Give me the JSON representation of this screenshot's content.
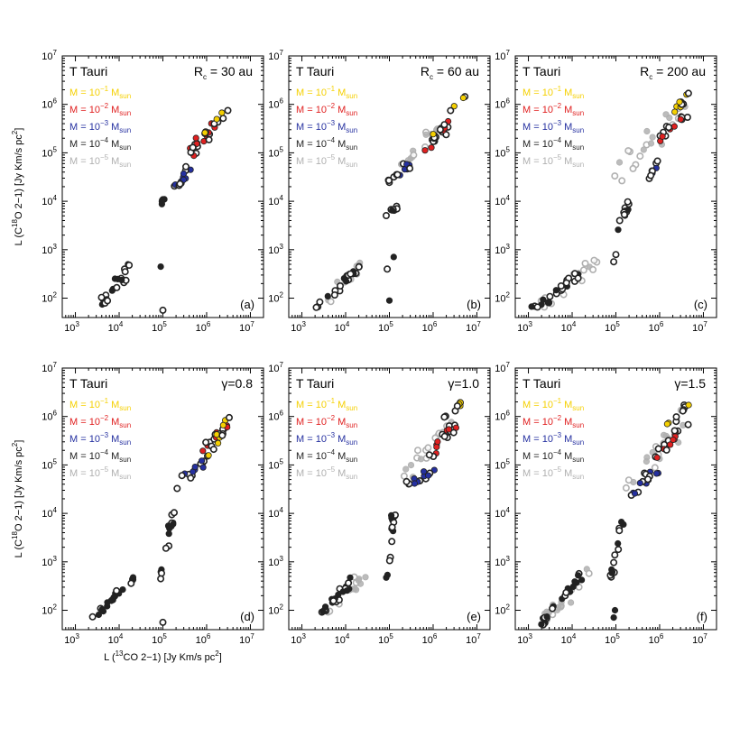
{
  "figure": {
    "xlabel": "L (13CO 2−1) [Jy Km/s pc2]",
    "xlabel_parts": {
      "pre": "L (",
      "iso": "13",
      "mid": "CO 2−1) [Jy Km/s pc",
      "sup2": "2",
      "post": "]"
    },
    "ylabel": "L (C18O 2−1) [Jy Km/s pc2]",
    "ylabel_parts": {
      "pre": "L (C",
      "iso": "18",
      "mid": "O 2−1) [Jy Km/s pc",
      "sup2": "2",
      "post": "]"
    },
    "source_label": "T Tauri"
  },
  "colors": {
    "m1": "#f5d000",
    "m2": "#e02020",
    "m3": "#2530a0",
    "m4": "#222222",
    "m5": "#b0b0b0"
  },
  "legend": [
    {
      "key": "m1",
      "prefix": "M = 10",
      "exp": "−1",
      "unit": "M",
      "unit_sub": "sun"
    },
    {
      "key": "m2",
      "prefix": "M = 10",
      "exp": "−2",
      "unit": "M",
      "unit_sub": "sun"
    },
    {
      "key": "m3",
      "prefix": "M = 10",
      "exp": "−3",
      "unit": "M",
      "unit_sub": "sun"
    },
    {
      "key": "m4",
      "prefix": "M = 10",
      "exp": "−4",
      "unit": "M",
      "unit_sub": "sun"
    },
    {
      "key": "m5",
      "prefix": "M = 10",
      "exp": "−5",
      "unit": "M",
      "unit_sub": "sun"
    }
  ],
  "chart_data": [
    {
      "type": "scatter",
      "panel": "a",
      "param_text": "R",
      "param_sub": "c",
      "param_value": " = 30 au",
      "xscale": "log",
      "yscale": "log",
      "xlim": [
        500,
        20000000
      ],
      "ylim": [
        40,
        10000000
      ],
      "xticks": [
        "3",
        "4",
        "5",
        "6",
        "7"
      ],
      "yticks": [
        "2",
        "3",
        "4",
        "5",
        "6",
        "7"
      ]
    },
    {
      "type": "scatter",
      "panel": "b",
      "param_text": "R",
      "param_sub": "c",
      "param_value": " = 60 au",
      "xscale": "log",
      "yscale": "log",
      "xlim": [
        500,
        20000000
      ],
      "ylim": [
        40,
        10000000
      ],
      "xticks": [
        "3",
        "4",
        "5",
        "6",
        "7"
      ],
      "yticks": [
        "2",
        "3",
        "4",
        "5",
        "6",
        "7"
      ]
    },
    {
      "type": "scatter",
      "panel": "c",
      "param_text": "R",
      "param_sub": "c",
      "param_value": " = 200 au",
      "xscale": "log",
      "yscale": "log",
      "xlim": [
        500,
        20000000
      ],
      "ylim": [
        40,
        10000000
      ],
      "xticks": [
        "3",
        "4",
        "5",
        "6",
        "7"
      ],
      "yticks": [
        "2",
        "3",
        "4",
        "5",
        "6",
        "7"
      ]
    },
    {
      "type": "scatter",
      "panel": "d",
      "param_text": "γ",
      "param_sub": "",
      "param_value": "=0.8",
      "xscale": "log",
      "yscale": "log",
      "xlim": [
        500,
        20000000
      ],
      "ylim": [
        40,
        10000000
      ],
      "xticks": [
        "3",
        "4",
        "5",
        "6",
        "7"
      ],
      "yticks": [
        "2",
        "3",
        "4",
        "5",
        "6",
        "7"
      ]
    },
    {
      "type": "scatter",
      "panel": "e",
      "param_text": "γ",
      "param_sub": "",
      "param_value": "=1.0",
      "xscale": "log",
      "yscale": "log",
      "xlim": [
        500,
        20000000
      ],
      "ylim": [
        40,
        10000000
      ],
      "xticks": [
        "3",
        "4",
        "5",
        "6",
        "7"
      ],
      "yticks": [
        "2",
        "3",
        "4",
        "5",
        "6",
        "7"
      ]
    },
    {
      "type": "scatter",
      "panel": "f",
      "param_text": "γ",
      "param_sub": "",
      "param_value": "=1.5",
      "xscale": "log",
      "yscale": "log",
      "xlim": [
        500,
        20000000
      ],
      "ylim": [
        40,
        10000000
      ],
      "xticks": [
        "3",
        "4",
        "5",
        "6",
        "7"
      ],
      "yticks": [
        "2",
        "3",
        "4",
        "5",
        "6",
        "7"
      ]
    }
  ]
}
